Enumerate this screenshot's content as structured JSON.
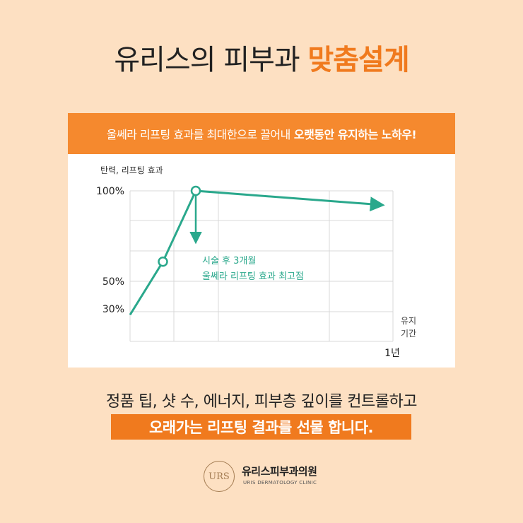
{
  "headline": {
    "normal": "유리스의 피부과",
    "accent": "맞춤설계"
  },
  "banner": {
    "normal": "울쎄라 리프팅 효과를 최대한으로 끌어내",
    "strong": "오랫동안 유지하는 노하우!"
  },
  "chart_data": {
    "type": "line",
    "ylabel": "탄력, 리프팅 효과",
    "xlabel": "유지\n기간",
    "xlabel_lines": [
      "유지",
      "기간"
    ],
    "ytick_labels": [
      "100%",
      "50%",
      "30%"
    ],
    "xtick_labels": [
      "1년"
    ],
    "x_unit": "months",
    "ylim": [
      15,
      100
    ],
    "xlim": [
      -0.5,
      12
    ],
    "series": [
      {
        "points": [
          {
            "x": 0,
            "y": 30
          },
          {
            "x": 1.5,
            "y": 60
          },
          {
            "x": 3,
            "y": 100
          },
          {
            "x": 11.5,
            "y": 92
          }
        ],
        "marked_points": [
          1,
          2
        ],
        "ends_with_arrow": true
      }
    ],
    "annotation": {
      "lines": [
        "시술 후 3개월",
        "울쎄라 리프팅 효과 최고점"
      ],
      "at_x": 3
    },
    "line_color": "#2aa88c",
    "grid": true
  },
  "bottom": {
    "line1": "정품 팁, 샷 수, 에너지, 피부층 깊이를 컨트롤하고",
    "line2": "오래가는 리프팅 결과를 선물 합니다."
  },
  "logo": {
    "mark": "URS",
    "name": "유리스피부과의원",
    "sub": "URIS DERMATOLOGY CLINIC"
  },
  "colors": {
    "background": "#fde0c2",
    "accent": "#f07a1e",
    "banner": "#f5892e",
    "line": "#2aa88c"
  }
}
